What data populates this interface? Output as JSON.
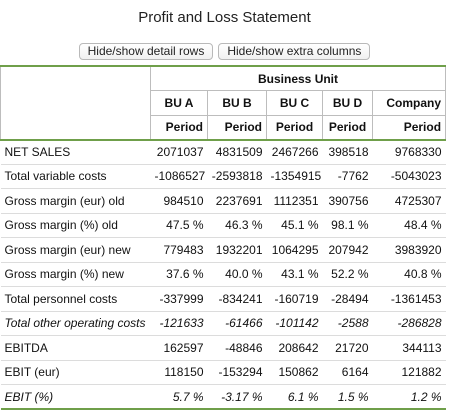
{
  "title": "Profit and Loss Statement",
  "buttons": {
    "detail": "Hide/show detail rows",
    "extra": "Hide/show extra columns"
  },
  "header": {
    "group": "Business Unit",
    "columns": [
      "BU A",
      "BU B",
      "BU C",
      "BU D",
      "Company"
    ],
    "period": "Period"
  },
  "rows": [
    {
      "label": "NET SALES",
      "italic": false,
      "values": [
        "2071037",
        "4831509",
        "2467266",
        "398518",
        "9768330"
      ]
    },
    {
      "label": "Total variable costs",
      "italic": false,
      "values": [
        "-1086527",
        "-2593818",
        "-1354915",
        "-7762",
        "-5043023"
      ]
    },
    {
      "label": "Gross margin (eur) old",
      "italic": false,
      "values": [
        "984510",
        "2237691",
        "1112351",
        "390756",
        "4725307"
      ]
    },
    {
      "label": "Gross margin (%) old",
      "italic": false,
      "values": [
        "47.5 %",
        "46.3 %",
        "45.1 %",
        "98.1 %",
        "48.4 %"
      ]
    },
    {
      "label": "Gross margin (eur) new",
      "italic": false,
      "values": [
        "779483",
        "1932201",
        "1064295",
        "207942",
        "3983920"
      ]
    },
    {
      "label": "Gross margin (%) new",
      "italic": false,
      "values": [
        "37.6 %",
        "40.0 %",
        "43.1 %",
        "52.2 %",
        "40.8 %"
      ]
    },
    {
      "label": "Total personnel costs",
      "italic": false,
      "values": [
        "-337999",
        "-834241",
        "-160719",
        "-28494",
        "-1361453"
      ]
    },
    {
      "label": "Total other operating costs",
      "italic": true,
      "values": [
        "-121633",
        "-61466",
        "-101142",
        "-2588",
        "-286828"
      ]
    },
    {
      "label": "EBITDA",
      "italic": false,
      "values": [
        "162597",
        "-48846",
        "208642",
        "21720",
        "344113"
      ]
    },
    {
      "label": "EBIT (eur)",
      "italic": false,
      "values": [
        "118150",
        "-153294",
        "150862",
        "6164",
        "121882"
      ]
    },
    {
      "label": "EBIT (%)",
      "italic": true,
      "values": [
        "5.7 %",
        "-3.17 %",
        "6.1 %",
        "1.5 %",
        "1.2 %"
      ]
    }
  ]
}
